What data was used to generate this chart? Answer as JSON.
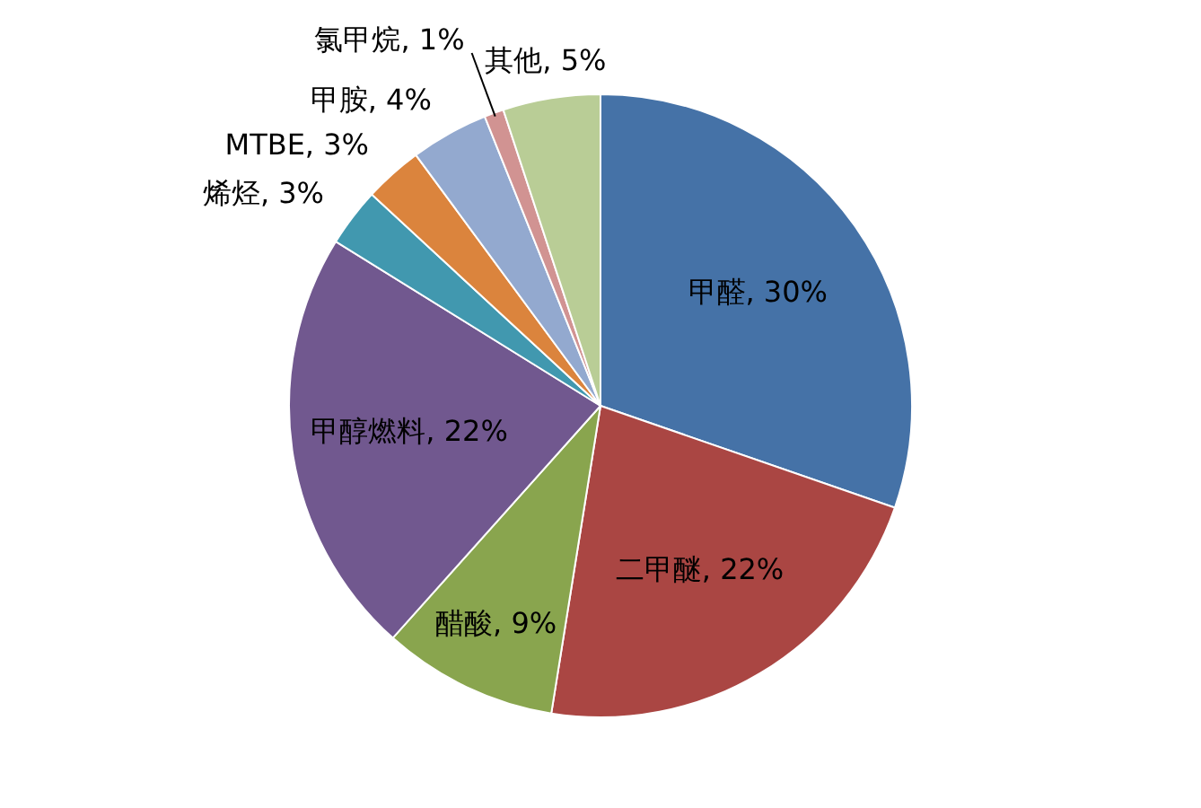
{
  "chart_data": {
    "type": "pie",
    "categories": [
      "甲醛",
      "二甲醚",
      "醋酸",
      "甲醇燃料",
      "烯烃",
      "MTBE",
      "甲胺",
      "氯甲烷",
      "其他"
    ],
    "values": [
      30,
      22,
      9,
      22,
      3,
      3,
      4,
      1,
      5
    ],
    "colors": [
      "#4572a7",
      "#aa4643",
      "#89a54e",
      "#71588f",
      "#4198af",
      "#db843d",
      "#93a9cf",
      "#d19392",
      "#b9cd96"
    ],
    "value_labels": [
      "30%",
      "22%",
      "9%",
      "22%",
      "3%",
      "3%",
      "4%",
      "1%",
      "5%"
    ],
    "legend": false
  }
}
